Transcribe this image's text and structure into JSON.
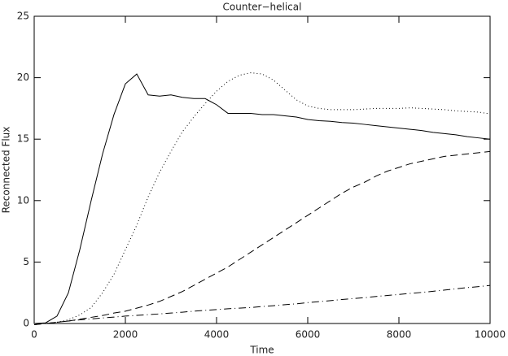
{
  "chart_data": {
    "type": "line",
    "title": "Counter−helical",
    "x_label": "Time",
    "y_label": "Reconnected Flux",
    "x": [
      0,
      250,
      500,
      750,
      1000,
      1250,
      1500,
      1750,
      2000,
      2250,
      2500,
      2750,
      3000,
      3250,
      3500,
      3750,
      4000,
      4250,
      4500,
      4750,
      5000,
      5250,
      5500,
      5750,
      6000,
      6250,
      6500,
      6750,
      7000,
      7250,
      7500,
      7750,
      8000,
      8250,
      8500,
      8750,
      9000,
      9250,
      9500,
      9750,
      10000
    ],
    "series": [
      {
        "style": "solid",
        "color": "#000000",
        "values": [
          0,
          0.05,
          0.6,
          2.5,
          6,
          10,
          13.8,
          17,
          19.5,
          20.3,
          18.6,
          18.5,
          18.6,
          18.4,
          18.3,
          18.3,
          17.8,
          17.1,
          17.1,
          17.1,
          17.0,
          17.0,
          16.9,
          16.8,
          16.6,
          16.5,
          16.45,
          16.35,
          16.3,
          16.2,
          16.1,
          16.0,
          15.9,
          15.8,
          15.7,
          15.55,
          15.45,
          15.35,
          15.2,
          15.1,
          15.0
        ]
      },
      {
        "style": "dotted",
        "color": "#000000",
        "values": [
          0,
          0,
          0.1,
          0.3,
          0.7,
          1.3,
          2.5,
          4,
          6,
          8,
          10.3,
          12.3,
          14,
          15.6,
          16.8,
          17.9,
          18.9,
          19.7,
          20.2,
          20.4,
          20.3,
          19.8,
          19.0,
          18.2,
          17.7,
          17.5,
          17.4,
          17.4,
          17.4,
          17.45,
          17.5,
          17.5,
          17.5,
          17.55,
          17.5,
          17.45,
          17.4,
          17.3,
          17.25,
          17.2,
          17.05
        ]
      },
      {
        "style": "dashed",
        "color": "#000000",
        "values": [
          -0.1,
          0,
          0.1,
          0.2,
          0.35,
          0.5,
          0.65,
          0.85,
          1.0,
          1.25,
          1.5,
          1.8,
          2.2,
          2.6,
          3.1,
          3.6,
          4.1,
          4.6,
          5.2,
          5.8,
          6.4,
          7.0,
          7.6,
          8.2,
          8.8,
          9.4,
          10.0,
          10.6,
          11.1,
          11.5,
          12.0,
          12.4,
          12.7,
          13.0,
          13.2,
          13.4,
          13.6,
          13.7,
          13.8,
          13.9,
          14.0
        ]
      },
      {
        "style": "dashdot",
        "color": "#000000",
        "values": [
          -0.1,
          0,
          0.1,
          0.2,
          0.3,
          0.37,
          0.45,
          0.52,
          0.6,
          0.66,
          0.72,
          0.78,
          0.85,
          0.92,
          1.0,
          1.07,
          1.13,
          1.2,
          1.25,
          1.3,
          1.38,
          1.45,
          1.53,
          1.6,
          1.7,
          1.78,
          1.86,
          1.95,
          2.03,
          2.1,
          2.2,
          2.28,
          2.36,
          2.45,
          2.53,
          2.62,
          2.72,
          2.82,
          2.92,
          3.0,
          3.1
        ]
      }
    ],
    "xlim": [
      0,
      10000
    ],
    "ylim": [
      0,
      25
    ],
    "xticks": [
      0,
      2000,
      4000,
      6000,
      8000,
      10000
    ],
    "yticks": [
      0,
      5,
      10,
      15,
      20,
      25
    ]
  }
}
